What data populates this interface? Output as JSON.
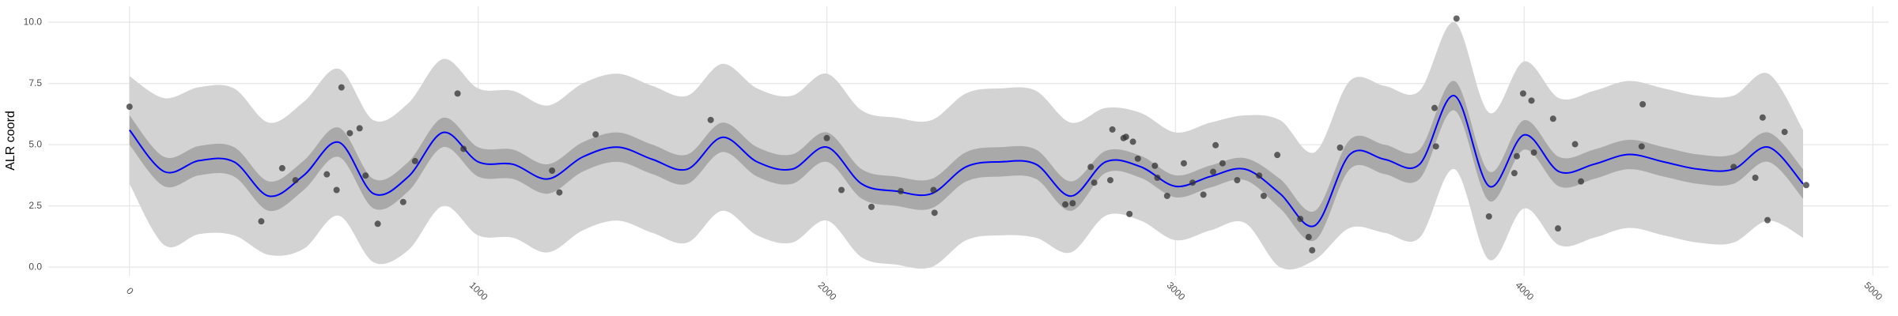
{
  "chart_data": {
    "type": "line",
    "y_label": "ALR coord",
    "xlim": [
      -233,
      5045
    ],
    "ylim": [
      -0.35,
      10.65
    ],
    "xticks": [
      0,
      1000,
      2000,
      3000,
      4000,
      5000
    ],
    "yticks": [
      {
        "value": 0,
        "label": "0.0"
      },
      2.5,
      {
        "value": 5,
        "label": "5.0"
      },
      7.5,
      {
        "value": 10,
        "label": "10.0"
      }
    ],
    "grid": true,
    "x": [
      0,
      100,
      200,
      300,
      400,
      500,
      600,
      700,
      800,
      900,
      1000,
      1100,
      1200,
      1300,
      1400,
      1500,
      1600,
      1700,
      1800,
      1900,
      2000,
      2100,
      2200,
      2300,
      2400,
      2500,
      2600,
      2700,
      2800,
      2900,
      3000,
      3100,
      3200,
      3300,
      3400,
      3500,
      3600,
      3700,
      3800,
      3900,
      4000,
      4100,
      4200,
      4300,
      4400,
      4500,
      4600,
      4700,
      4800
    ],
    "outer_band": {
      "color": "#d3d3d3",
      "upper": [
        7.8,
        6.9,
        7.35,
        7.3,
        5.9,
        6.75,
        8.1,
        6.0,
        6.7,
        8.5,
        7.3,
        7.2,
        6.6,
        7.5,
        7.9,
        7.4,
        7.0,
        8.3,
        7.3,
        7.0,
        7.9,
        6.4,
        6.1,
        6.0,
        7.1,
        7.3,
        7.2,
        5.9,
        6.5,
        6.3,
        5.5,
        5.9,
        6.2,
        6.0,
        4.7,
        7.6,
        7.4,
        7.2,
        10.0,
        6.3,
        8.4,
        6.9,
        7.2,
        7.6,
        7.3,
        7.0,
        7.0,
        7.9,
        5.6
      ],
      "lower": [
        3.4,
        0.9,
        1.35,
        1.3,
        0.5,
        0.75,
        2.1,
        0.2,
        0.7,
        2.5,
        1.3,
        1.2,
        0.6,
        1.5,
        1.9,
        1.4,
        1.0,
        2.3,
        1.3,
        1.0,
        1.9,
        0.4,
        0.1,
        0.0,
        1.1,
        1.3,
        1.2,
        0.6,
        2.1,
        1.9,
        1.1,
        1.5,
        1.8,
        0.0,
        0.3,
        1.6,
        1.4,
        1.2,
        4.0,
        0.3,
        2.4,
        0.9,
        1.2,
        1.6,
        1.3,
        1.0,
        1.0,
        1.9,
        1.2
      ]
    },
    "inner_band": {
      "color": "#a9a9a9",
      "upper": [
        6.2,
        4.5,
        4.95,
        4.9,
        3.5,
        4.35,
        5.7,
        3.6,
        4.3,
        6.1,
        4.9,
        4.8,
        4.2,
        5.1,
        5.5,
        5.0,
        4.6,
        5.9,
        4.9,
        4.6,
        5.5,
        4.0,
        3.7,
        3.6,
        4.7,
        4.9,
        4.8,
        3.5,
        4.75,
        4.55,
        3.75,
        4.15,
        4.45,
        3.6,
        2.3,
        5.2,
        5.0,
        4.8,
        7.6,
        3.9,
        6.0,
        4.5,
        4.8,
        5.2,
        4.9,
        4.6,
        4.6,
        5.5,
        4.0
      ],
      "lower": [
        5.0,
        3.3,
        3.75,
        3.7,
        2.3,
        3.15,
        4.5,
        2.4,
        3.1,
        4.9,
        3.7,
        3.6,
        3.0,
        3.9,
        4.3,
        3.8,
        3.4,
        4.7,
        3.7,
        3.4,
        4.3,
        2.8,
        2.5,
        2.4,
        3.5,
        3.7,
        3.6,
        2.3,
        3.85,
        3.65,
        2.85,
        3.25,
        3.55,
        2.4,
        1.1,
        4.0,
        3.8,
        3.6,
        6.4,
        2.7,
        4.8,
        3.3,
        3.6,
        4.0,
        3.7,
        3.4,
        3.4,
        4.3,
        2.8
      ]
    },
    "mean": {
      "color": "#0000ff",
      "values": [
        5.6,
        3.9,
        4.35,
        4.3,
        2.9,
        3.75,
        5.1,
        3.0,
        3.7,
        5.5,
        4.3,
        4.2,
        3.6,
        4.5,
        4.9,
        4.4,
        4.0,
        5.3,
        4.3,
        4.0,
        4.9,
        3.4,
        3.1,
        3.0,
        4.1,
        4.3,
        4.2,
        2.9,
        4.3,
        4.1,
        3.3,
        3.7,
        4.0,
        3.0,
        1.7,
        4.6,
        4.4,
        4.2,
        7.0,
        3.3,
        5.4,
        3.9,
        4.2,
        4.6,
        4.3,
        4.0,
        4.0,
        4.9,
        3.4
      ]
    },
    "points": {
      "color": "#333333",
      "x": [
        0,
        378,
        438,
        476,
        566,
        594,
        608,
        632,
        660,
        677,
        712,
        785,
        819,
        941,
        958,
        1212,
        1233,
        1337,
        1667,
        2000,
        2042,
        2128,
        2212,
        2306,
        2309,
        2684,
        2705,
        2757,
        2767,
        2813,
        2819,
        2851,
        2858,
        2868,
        2878,
        2892,
        2941,
        2948,
        2976,
        3024,
        3049,
        3080,
        3108,
        3115,
        3135,
        3177,
        3240,
        3253,
        3292,
        3358,
        3382,
        3392,
        3472,
        3743,
        3747,
        3806,
        3899,
        3972,
        3979,
        3997,
        4021,
        4028,
        4083,
        4097,
        4146,
        4163,
        4337,
        4340,
        4601,
        4663,
        4684,
        4698,
        4747,
        4809
      ],
      "y": [
        6.55,
        1.87,
        4.04,
        3.55,
        3.79,
        3.15,
        7.34,
        5.47,
        5.67,
        3.74,
        1.77,
        2.66,
        4.33,
        7.09,
        4.83,
        3.94,
        3.05,
        5.42,
        6.01,
        5.27,
        3.15,
        2.46,
        3.1,
        3.15,
        2.22,
        2.56,
        2.61,
        4.09,
        3.45,
        3.55,
        5.62,
        5.27,
        5.32,
        2.17,
        5.12,
        4.43,
        4.14,
        3.65,
        2.91,
        4.24,
        3.45,
        2.96,
        3.89,
        4.98,
        4.24,
        3.55,
        3.74,
        2.91,
        4.58,
        1.97,
        1.23,
        0.69,
        4.88,
        6.5,
        4.93,
        10.15,
        2.07,
        3.84,
        4.53,
        7.09,
        6.8,
        4.68,
        6.06,
        1.58,
        5.02,
        3.5,
        4.93,
        6.65,
        4.09,
        3.65,
        6.11,
        1.92,
        5.52,
        3.35
      ]
    }
  }
}
